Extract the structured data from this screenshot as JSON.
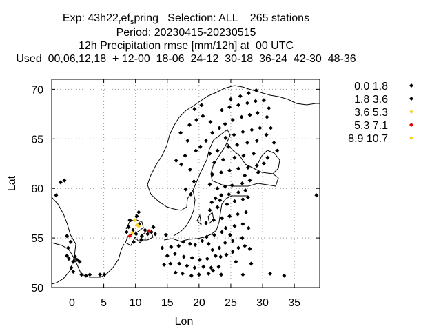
{
  "title": {
    "line1_a": "Exp: 43h22",
    "line1_sub_r": "r",
    "line1_b": "ef",
    "line1_sub_s": "s",
    "line1_c": "pring   Selection: ALL    265 stations",
    "line2": "Period: 20230415-20230515",
    "line3": "12h Precipitation rmse [mm/12h] at  00 UTC",
    "line4": "Used  00,06,12,18  + 12-00  18-06  24-12  30-18  36-24  42-30  48-36"
  },
  "chart_data": {
    "type": "scatter",
    "xlabel": "Lon",
    "ylabel": "Lat",
    "xlim": [
      -3.2,
      39
    ],
    "ylim": [
      50,
      71
    ],
    "xticks": [
      "0",
      "5",
      "10",
      "15",
      "20",
      "25",
      "30",
      "35"
    ],
    "yticks": [
      "50",
      "55",
      "60",
      "65",
      "70"
    ],
    "grid": true,
    "legend_position": "right",
    "series": [
      {
        "name": "0.0 1.8",
        "color": "#000000",
        "points": [
          [
            -1.8,
            60.6
          ],
          [
            -1.2,
            60.8
          ],
          [
            -2.5,
            59.3
          ],
          [
            -0.8,
            53.2
          ],
          [
            -0.5,
            52.9
          ],
          [
            0.2,
            52.6
          ],
          [
            0.5,
            53.1
          ],
          [
            0.8,
            52.8
          ],
          [
            1.2,
            52.6
          ],
          [
            -0.6,
            54.0
          ],
          [
            -0.2,
            54.6
          ],
          [
            -0.8,
            55.2
          ],
          [
            1.5,
            51.3
          ],
          [
            2.2,
            51.2
          ],
          [
            2.8,
            51.3
          ],
          [
            4.4,
            51.3
          ],
          [
            5.1,
            51.3
          ],
          [
            0.2,
            51.6
          ],
          [
            -0.1,
            52.0
          ],
          [
            8.9,
            56.1
          ],
          [
            9.1,
            56.8
          ],
          [
            10.2,
            57.2
          ],
          [
            10.6,
            56.4
          ],
          [
            9.6,
            55.8
          ],
          [
            8.6,
            55.6
          ],
          [
            10.1,
            55.4
          ],
          [
            11.5,
            55.8
          ],
          [
            12.5,
            55.6
          ],
          [
            11.0,
            55.2
          ],
          [
            13.1,
            55.4
          ],
          [
            10.5,
            57.6
          ],
          [
            14.2,
            54.0
          ],
          [
            15.6,
            54.1
          ],
          [
            16.8,
            54.2
          ],
          [
            17.5,
            54.6
          ],
          [
            18.6,
            54.4
          ],
          [
            19.4,
            54.3
          ],
          [
            20.5,
            54.7
          ],
          [
            21.5,
            54.4
          ],
          [
            15.0,
            53.2
          ],
          [
            16.2,
            53.4
          ],
          [
            17.6,
            53.1
          ],
          [
            18.9,
            53.0
          ],
          [
            20.1,
            52.8
          ],
          [
            21.3,
            52.9
          ],
          [
            22.6,
            53.2
          ],
          [
            23.4,
            53.1
          ],
          [
            14.5,
            52.3
          ],
          [
            15.5,
            52.4
          ],
          [
            16.9,
            52.4
          ],
          [
            18.1,
            52.2
          ],
          [
            19.3,
            52.0
          ],
          [
            20.7,
            52.1
          ],
          [
            21.9,
            52.0
          ],
          [
            23.1,
            52.1
          ],
          [
            16.3,
            51.5
          ],
          [
            17.4,
            51.4
          ],
          [
            18.8,
            51.2
          ],
          [
            20.0,
            51.3
          ],
          [
            21.5,
            51.4
          ],
          [
            23.5,
            51.3
          ],
          [
            22.2,
            51.7
          ],
          [
            22.1,
            53.8
          ],
          [
            23.2,
            54.0
          ],
          [
            24.1,
            54.5
          ],
          [
            25.3,
            54.7
          ],
          [
            26.8,
            55.0
          ],
          [
            24.9,
            55.3
          ],
          [
            23.6,
            55.6
          ],
          [
            21.2,
            55.1
          ],
          [
            22.4,
            55.3
          ],
          [
            24.2,
            56.0
          ],
          [
            25.6,
            56.2
          ],
          [
            26.9,
            56.4
          ],
          [
            27.8,
            56.0
          ],
          [
            21.1,
            56.5
          ],
          [
            22.3,
            56.8
          ],
          [
            23.6,
            57.0
          ],
          [
            24.8,
            57.2
          ],
          [
            26.1,
            57.4
          ],
          [
            27.4,
            57.6
          ],
          [
            21.7,
            57.8
          ],
          [
            22.9,
            58.1
          ],
          [
            24.4,
            58.4
          ],
          [
            25.6,
            58.7
          ],
          [
            26.9,
            58.9
          ],
          [
            27.7,
            59.1
          ],
          [
            23.5,
            59.3
          ],
          [
            24.7,
            59.4
          ],
          [
            26.2,
            59.6
          ],
          [
            27.3,
            59.8
          ],
          [
            22.0,
            58.6
          ],
          [
            22.6,
            59.0
          ],
          [
            23.3,
            58.8
          ],
          [
            25.3,
            53.6
          ],
          [
            26.2,
            54.0
          ],
          [
            27.2,
            54.2
          ],
          [
            28.0,
            53.9
          ],
          [
            24.3,
            53.3
          ],
          [
            25.8,
            52.6
          ],
          [
            28.2,
            52.4
          ],
          [
            26.9,
            51.3
          ],
          [
            31.2,
            51.4
          ],
          [
            33.4,
            51.2
          ],
          [
            38.5,
            59.3
          ],
          [
            24.1,
            60.2
          ],
          [
            25.2,
            60.3
          ],
          [
            26.8,
            60.5
          ],
          [
            28.0,
            60.8
          ],
          [
            22.9,
            60.0
          ],
          [
            21.7,
            60.4
          ],
          [
            22.1,
            61.4
          ],
          [
            23.5,
            61.6
          ],
          [
            24.8,
            61.8
          ],
          [
            26.2,
            62.0
          ],
          [
            27.7,
            62.1
          ],
          [
            29.1,
            62.3
          ],
          [
            30.2,
            62.5
          ],
          [
            22.4,
            62.6
          ],
          [
            23.8,
            62.9
          ],
          [
            25.6,
            63.1
          ],
          [
            27.0,
            63.3
          ],
          [
            28.6,
            63.5
          ],
          [
            21.7,
            63.5
          ],
          [
            22.9,
            63.8
          ],
          [
            24.6,
            64.2
          ],
          [
            26.0,
            64.4
          ],
          [
            27.6,
            64.6
          ],
          [
            29.1,
            64.8
          ],
          [
            24.2,
            65.1
          ],
          [
            25.5,
            65.4
          ],
          [
            26.9,
            65.7
          ],
          [
            28.3,
            65.9
          ],
          [
            29.6,
            66.1
          ],
          [
            24.1,
            66.5
          ],
          [
            25.3,
            66.9
          ],
          [
            26.7,
            67.2
          ],
          [
            28.0,
            67.4
          ],
          [
            29.2,
            67.6
          ],
          [
            23.6,
            67.9
          ],
          [
            24.8,
            68.2
          ],
          [
            26.2,
            68.4
          ],
          [
            27.6,
            68.6
          ],
          [
            28.9,
            68.8
          ],
          [
            25.0,
            69.0
          ],
          [
            26.5,
            69.3
          ],
          [
            27.8,
            69.6
          ],
          [
            29.0,
            69.9
          ],
          [
            30.2,
            68.9
          ],
          [
            31.0,
            68.1
          ],
          [
            30.7,
            67.2
          ],
          [
            31.3,
            66.1
          ],
          [
            30.6,
            65.4
          ],
          [
            31.8,
            64.6
          ],
          [
            32.3,
            63.8
          ],
          [
            30.8,
            63.1
          ],
          [
            29.3,
            61.6
          ],
          [
            27.2,
            61.3
          ],
          [
            18.7,
            59.4
          ],
          [
            17.9,
            59.9
          ],
          [
            19.2,
            60.7
          ],
          [
            18.6,
            61.9
          ],
          [
            17.2,
            62.4
          ],
          [
            16.4,
            62.8
          ],
          [
            17.8,
            63.3
          ],
          [
            19.5,
            63.8
          ],
          [
            20.2,
            64.2
          ],
          [
            21.1,
            64.8
          ],
          [
            22.1,
            65.6
          ],
          [
            23.2,
            66.1
          ],
          [
            21.8,
            66.7
          ],
          [
            20.6,
            67.3
          ],
          [
            19.3,
            68.0
          ],
          [
            20.4,
            68.4
          ],
          [
            18.2,
            64.8
          ],
          [
            17.1,
            65.6
          ],
          [
            18.5,
            66.4
          ],
          [
            19.6,
            66.9
          ]
        ]
      },
      {
        "name": "1.8 3.6",
        "color": "#000000",
        "points": [
          [
            14.8,
            55.3
          ],
          [
            12.8,
            56.1
          ],
          [
            11.9,
            55.4
          ],
          [
            10.9,
            54.8
          ],
          [
            9.7,
            54.6
          ]
        ]
      },
      {
        "name": "3.6 5.3",
        "color": "#ffd42a",
        "points": [
          [
            9.9,
            56.8
          ],
          [
            10.5,
            56.2
          ],
          [
            9.5,
            55.5
          ]
        ]
      },
      {
        "name": "5.3 7.1",
        "color": "#e00000",
        "points": [
          [
            9.1,
            55.2
          ],
          [
            12.1,
            55.7
          ]
        ]
      },
      {
        "name": "8.9 10.7",
        "color": "#ffd42a",
        "points": [
          [
            10.3,
            56.3
          ]
        ]
      }
    ]
  }
}
